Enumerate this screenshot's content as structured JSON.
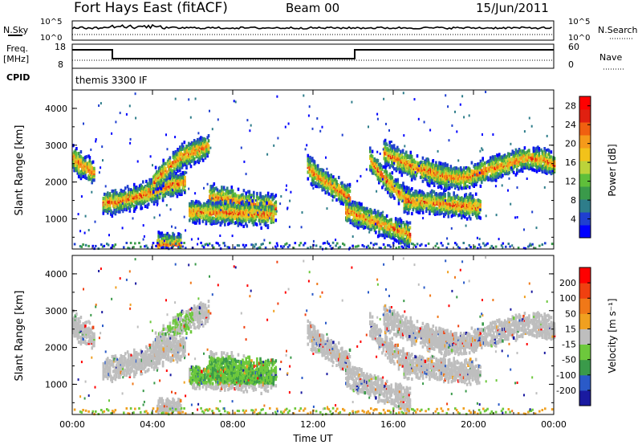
{
  "header": {
    "station": "Fort Hays East (fitACF)",
    "beam": "Beam 00",
    "date": "15/Jun/2011"
  },
  "noise_panel": {
    "left_label": "N.Sky",
    "left_ticks": [
      "10^5",
      "10^0"
    ],
    "right_label": "N.Search",
    "right_ticks": [
      "10^5",
      "10^0"
    ]
  },
  "freq_panel": {
    "left_label_line1": "Freq.",
    "left_label_line2": "[MHz]",
    "left_ticks": [
      "18",
      "8"
    ],
    "right_label": "Nave",
    "right_ticks": [
      "60",
      "0"
    ]
  },
  "cpid": {
    "label": "CPID",
    "program": "themis 3300 IF"
  },
  "chart_data": [
    {
      "type": "heatmap",
      "title": "",
      "xlabel": "",
      "ylabel": "Slant Range [km]",
      "xlim": [
        0,
        24
      ],
      "ylim": [
        180,
        4500
      ],
      "y_ticks": [
        "1000",
        "2000",
        "3000",
        "4000"
      ],
      "colorbar": {
        "label": "Power [dB]",
        "ticks": [
          "4",
          "8",
          "12",
          "16",
          "20",
          "24",
          "28"
        ],
        "range": [
          0,
          30
        ],
        "colors": [
          "#0000ff",
          "#1f3fd0",
          "#2e7d8a",
          "#3a9a4a",
          "#5fbf3a",
          "#bcd33a",
          "#f2c21a",
          "#f59a1a",
          "#f06010",
          "#e02010",
          "#ff0000"
        ]
      },
      "echo_bands": [
        {
          "t": [
            0.0,
            0.3,
            0.6,
            0.9,
            1.1
          ],
          "r": [
            2700,
            2550,
            2450,
            2350,
            2300
          ]
        },
        {
          "t": [
            1.5,
            2.0,
            2.6,
            3.2,
            3.8,
            4.4,
            5.0,
            5.6
          ],
          "r": [
            1480,
            1500,
            1560,
            1650,
            1760,
            1880,
            1980,
            2020
          ]
        },
        {
          "t": [
            4.0,
            4.5,
            5.0,
            5.5,
            6.2,
            6.8
          ],
          "r": [
            2050,
            2300,
            2550,
            2780,
            2900,
            3050
          ]
        },
        {
          "t": [
            6.8,
            7.3,
            7.8,
            8.4,
            9.0,
            9.6,
            10.1
          ],
          "r": [
            1650,
            1610,
            1560,
            1500,
            1440,
            1390,
            1350
          ]
        },
        {
          "t": [
            5.8,
            6.4,
            7.0,
            7.6,
            8.2,
            8.8,
            9.4,
            10.0
          ],
          "r": [
            1240,
            1220,
            1210,
            1220,
            1200,
            1180,
            1170,
            1150
          ]
        },
        {
          "t": [
            11.7,
            12.2,
            12.8,
            13.3,
            13.8
          ],
          "r": [
            2450,
            2200,
            1980,
            1800,
            1620
          ]
        },
        {
          "t": [
            13.6,
            14.2,
            14.8,
            15.4,
            16.0,
            16.5,
            16.8
          ],
          "r": [
            1250,
            1150,
            1020,
            900,
            780,
            680,
            620
          ]
        },
        {
          "t": [
            14.8,
            15.2,
            15.7,
            16.2,
            16.8
          ],
          "r": [
            2650,
            2350,
            2050,
            1780,
            1560
          ]
        },
        {
          "t": [
            15.5,
            16.2,
            17.0,
            17.8,
            18.6
          ],
          "r": [
            2850,
            2650,
            2450,
            2300,
            2200
          ]
        },
        {
          "t": [
            16.5,
            17.5,
            18.5,
            19.5,
            20.3
          ],
          "r": [
            1550,
            1500,
            1450,
            1400,
            1350
          ]
        },
        {
          "t": [
            17.5,
            18.5,
            19.5,
            20.5,
            21.5,
            22.5,
            23.5,
            24.0
          ],
          "r": [
            2400,
            2200,
            2150,
            2350,
            2500,
            2700,
            2650,
            2500
          ]
        },
        {
          "t": [
            4.2,
            4.8,
            5.4
          ],
          "r": [
            350,
            340,
            330
          ]
        }
      ]
    },
    {
      "type": "heatmap",
      "title": "",
      "xlabel": "Time UT",
      "ylabel": "Slant Range [km]",
      "xlim": [
        0,
        24
      ],
      "ylim": [
        180,
        4500
      ],
      "x_ticks": [
        "00:00",
        "04:00",
        "08:00",
        "12:00",
        "16:00",
        "20:00",
        "00:00"
      ],
      "y_ticks": [
        "1000",
        "2000",
        "3000",
        "4000"
      ],
      "colorbar": {
        "label": "Velocity [m s⁻¹]",
        "ticks": [
          "200",
          "100",
          "50",
          "15",
          "-15",
          "-50",
          "-100",
          "-200"
        ],
        "colors": [
          "#1a1aa0",
          "#2a5ac8",
          "#3a9a4a",
          "#6dc83c",
          "#bebebe",
          "#f0a020",
          "#f07818",
          "#f04010",
          "#ff0000"
        ]
      }
    }
  ]
}
